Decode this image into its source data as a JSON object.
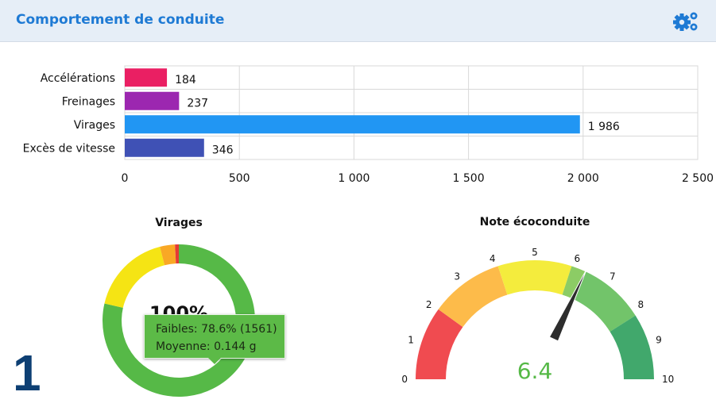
{
  "header": {
    "title": "Comportement de conduite",
    "settings_icon": "gears-icon",
    "accent": "#1e7ad4"
  },
  "chart_data": [
    {
      "type": "bar",
      "orientation": "horizontal",
      "categories": [
        "Accélérations",
        "Freinages",
        "Virages",
        "Excès de vitesse"
      ],
      "values": [
        184,
        237,
        1986,
        346
      ],
      "value_labels": [
        "184",
        "237",
        "1 986",
        "346"
      ],
      "colors": [
        "#ea1f63",
        "#9c27b0",
        "#2196f3",
        "#3f51b5"
      ],
      "xlim": [
        0,
        2500
      ],
      "ticks": [
        0,
        500,
        1000,
        1500,
        2000,
        2500
      ],
      "tick_labels": [
        "0",
        "500",
        "1 000",
        "1 500",
        "2 000",
        "2 500"
      ],
      "grid": true
    },
    {
      "type": "pie",
      "variant": "donut",
      "title": "Virages",
      "center_label": "100%",
      "slices": [
        {
          "value": 78.6,
          "color": "#56b947"
        },
        {
          "value": 17.4,
          "color": "#f5e414"
        },
        {
          "value": 3.2,
          "color": "#f9a825"
        },
        {
          "value": 0.8,
          "color": "#e53935"
        }
      ],
      "tooltip": {
        "line1": "Faibles: 78.6% (1561)",
        "line2": "Moyenne: 0.144 g"
      }
    },
    {
      "type": "gauge",
      "title": "Note écoconduite",
      "value": 6.4,
      "value_label": "6.4",
      "min": 0,
      "max": 10,
      "tick_labels": [
        "0",
        "1",
        "2",
        "3",
        "4",
        "5",
        "6",
        "7",
        "8",
        "9",
        "10"
      ],
      "bands": [
        {
          "from": 0,
          "to": 2,
          "color": "#f04b50"
        },
        {
          "from": 2,
          "to": 4,
          "color": "#fdbb4a"
        },
        {
          "from": 4,
          "to": 6,
          "color": "#f4ec3d"
        },
        {
          "from": 6,
          "to": 6.4,
          "color": "#8ccc65"
        },
        {
          "from": 6.4,
          "to": 8.2,
          "color": "#72c46a"
        },
        {
          "from": 8.2,
          "to": 10,
          "color": "#41a86c"
        }
      ],
      "value_color": "#56b947"
    }
  ],
  "footer_number": "1"
}
